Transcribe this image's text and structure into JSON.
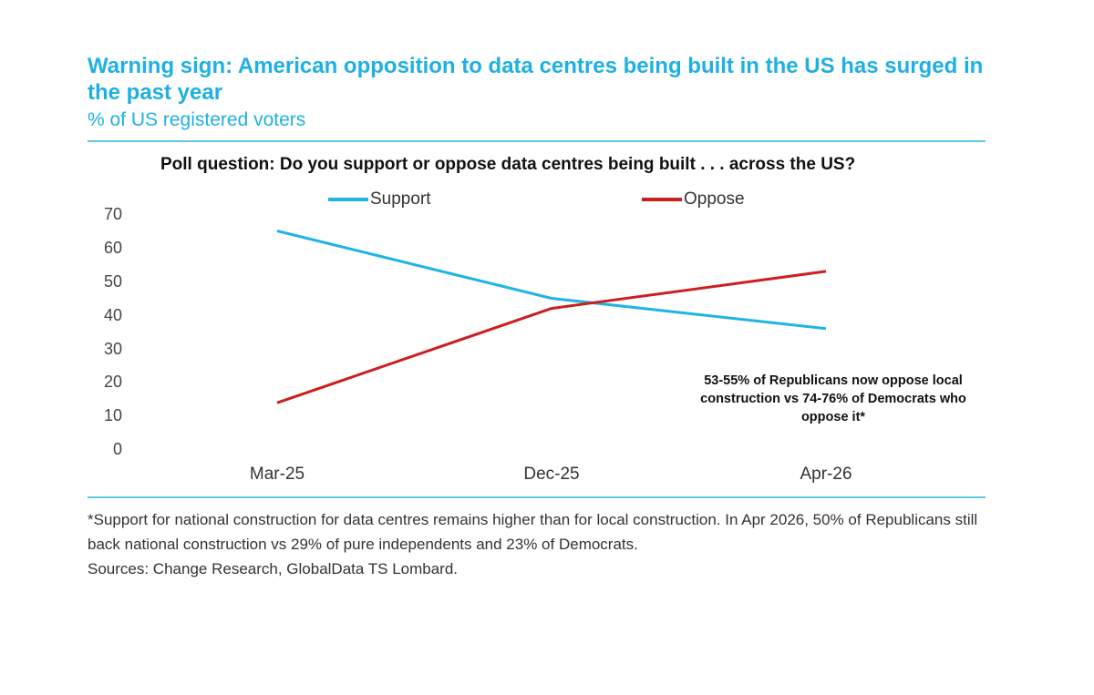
{
  "header": {
    "title": "Warning sign: American opposition to data centres being built in the US has surged in the past year",
    "subtitle": "% of US registered voters"
  },
  "chart_data": {
    "type": "line",
    "title": "Poll question: Do you support or oppose data centres being built . . . across the US?",
    "categories": [
      "Mar-25",
      "Dec-25",
      "Apr-26"
    ],
    "ylim": [
      0,
      70
    ],
    "yticks": [
      "70",
      "60",
      "50",
      "40",
      "30",
      "20",
      "10",
      "0"
    ],
    "grid": false,
    "legend_position": "top",
    "series": [
      {
        "name": "Support",
        "values": [
          65,
          45,
          36
        ],
        "color": "#1fb4e6"
      },
      {
        "name": "Oppose",
        "values": [
          14,
          42,
          53
        ],
        "color": "#cc1f1f"
      }
    ],
    "annotation": "53-55% of Republicans now oppose local construction vs 74-76% of Democrats who oppose it*"
  },
  "footer": {
    "note": "*Support for national construction for data centres remains higher than for local construction. In Apr 2026, 50% of Republicans still back national construction vs 29% of pure independents and 23% of Democrats.",
    "sources": "Sources: Change Research, GlobalData TS Lombard."
  }
}
